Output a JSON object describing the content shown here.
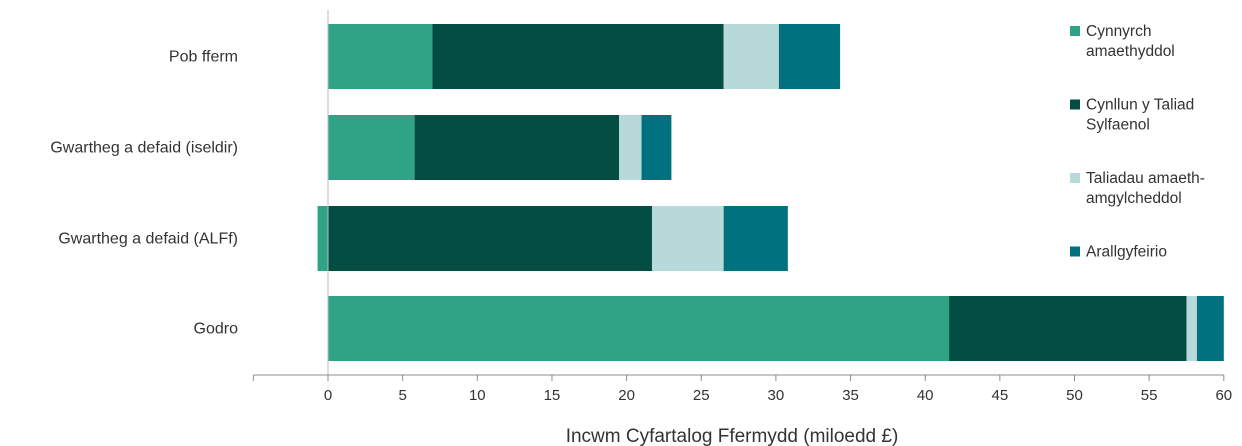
{
  "chart_data": {
    "type": "bar",
    "orientation": "horizontal",
    "stacked": true,
    "title": "",
    "xlabel": "Incwm Cyfartalog Ffermydd (miloedd £)",
    "ylabel": "",
    "xlim": [
      -5,
      60
    ],
    "xticks": [
      0,
      5,
      10,
      15,
      20,
      25,
      30,
      35,
      40,
      45,
      50,
      55,
      60
    ],
    "grid": false,
    "legend_position": "right",
    "categories": [
      "Pob fferm",
      "Gwartheg a defaid (iseldir)",
      "Gwartheg a defaid (ALFf)",
      "Godro"
    ],
    "series": [
      {
        "name": "Cynnyrch amaethyddol",
        "legend_lines": [
          "Cynnyrch",
          "amaethyddol"
        ],
        "color": "#2ea385",
        "values": [
          7.0,
          5.8,
          -0.7,
          41.6
        ]
      },
      {
        "name": "Cynllun y Taliad Sylfaenol",
        "legend_lines": [
          "Cynllun y Taliad",
          "Sylfaenol"
        ],
        "color": "#034d42",
        "values": [
          19.5,
          13.7,
          21.7,
          15.9
        ]
      },
      {
        "name": "Taliadau amaeth-amgylcheddol",
        "legend_lines": [
          "Taliadau amaeth-",
          "amgylcheddol"
        ],
        "color": "#b8d9d9",
        "values": [
          3.7,
          1.5,
          4.8,
          0.7
        ]
      },
      {
        "name": "Arallgyfeirio",
        "legend_lines": [
          "Arallgyfeirio"
        ],
        "color": "#00717f",
        "values": [
          4.1,
          2.0,
          4.3,
          1.8
        ]
      }
    ]
  }
}
